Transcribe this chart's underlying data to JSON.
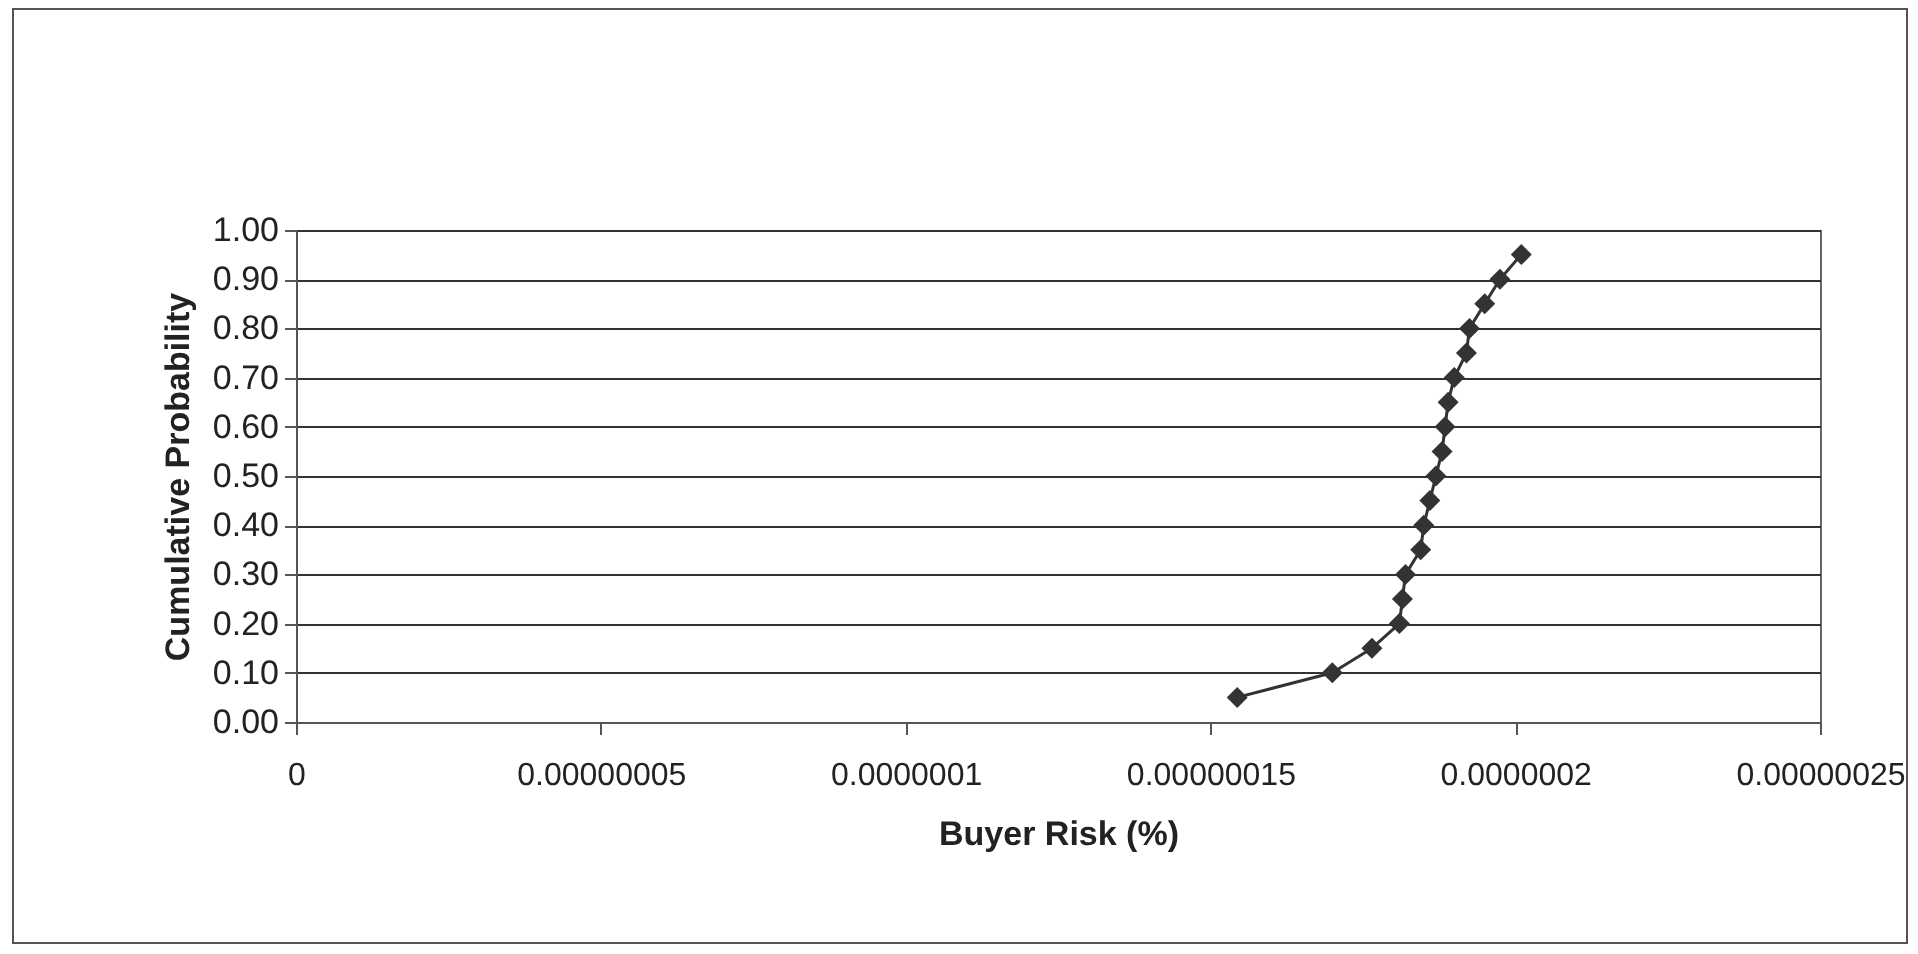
{
  "chart_data": {
    "type": "line",
    "xlabel": "Buyer Risk (%)",
    "ylabel": "Cumulative Probability",
    "x": [
      1.544e-07,
      1.7e-07,
      1.765e-07,
      1.81e-07,
      1.815e-07,
      1.82e-07,
      1.845e-07,
      1.85e-07,
      1.86e-07,
      1.87e-07,
      1.88e-07,
      1.885e-07,
      1.89e-07,
      1.9e-07,
      1.92e-07,
      1.925e-07,
      1.95e-07,
      1.975e-07,
      2.01e-07
    ],
    "series": [
      {
        "color": "#333333",
        "values": [
          0.05,
          0.1,
          0.15,
          0.2,
          0.25,
          0.3,
          0.35,
          0.4,
          0.45,
          0.5,
          0.55,
          0.6,
          0.65,
          0.7,
          0.75,
          0.8,
          0.85,
          0.9,
          0.95
        ]
      }
    ],
    "xlim": [
      0,
      2.5e-07
    ],
    "xticks": [
      0,
      {
        "value": 5e-08,
        "label": "0.00000005"
      },
      {
        "value": 1e-07,
        "label": "0.0000001"
      },
      {
        "value": 1.5e-07,
        "label": "0.00000015"
      },
      {
        "value": 2e-07,
        "label": "0.0000002"
      },
      {
        "value": 2.5e-07,
        "label": "0.00000025"
      }
    ],
    "ylim": [
      0,
      1
    ],
    "yticks": [
      {
        "value": 0,
        "label": "0.00"
      },
      {
        "value": 0.1,
        "label": "0.10"
      },
      {
        "value": 0.2,
        "label": "0.20"
      },
      {
        "value": 0.3,
        "label": "0.30"
      },
      {
        "value": 0.4,
        "label": "0.40"
      },
      {
        "value": 0.5,
        "label": "0.50"
      },
      {
        "value": 0.6,
        "label": "0.60"
      },
      {
        "value": 0.7,
        "label": "0.70"
      },
      {
        "value": 0.8,
        "label": "0.80"
      },
      {
        "value": 0.9,
        "label": "0.90"
      },
      {
        "value": 1,
        "label": "1.00"
      }
    ],
    "grid": "y",
    "marker": "diamond",
    "line_style": "solid"
  }
}
